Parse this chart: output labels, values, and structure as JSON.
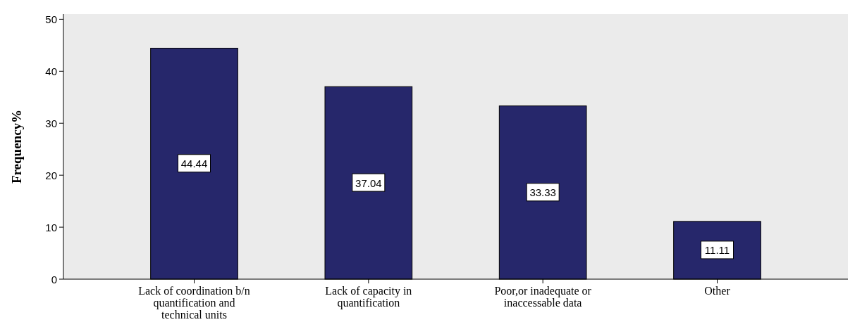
{
  "chart_data": {
    "type": "bar",
    "ylabel": "Frequency%",
    "categories": [
      "Lack of coordination b/n quantification and technical units",
      "Lack of capacity in quantification",
      "Poor,or inadequate or inaccessable data",
      "Other"
    ],
    "values": [
      44.44,
      37.04,
      33.33,
      11.11
    ],
    "color": "#26276b",
    "ylim": [
      0,
      51
    ],
    "yticks": [
      0,
      10,
      20,
      30,
      40,
      50
    ],
    "grid": false,
    "data_labels": true
  }
}
